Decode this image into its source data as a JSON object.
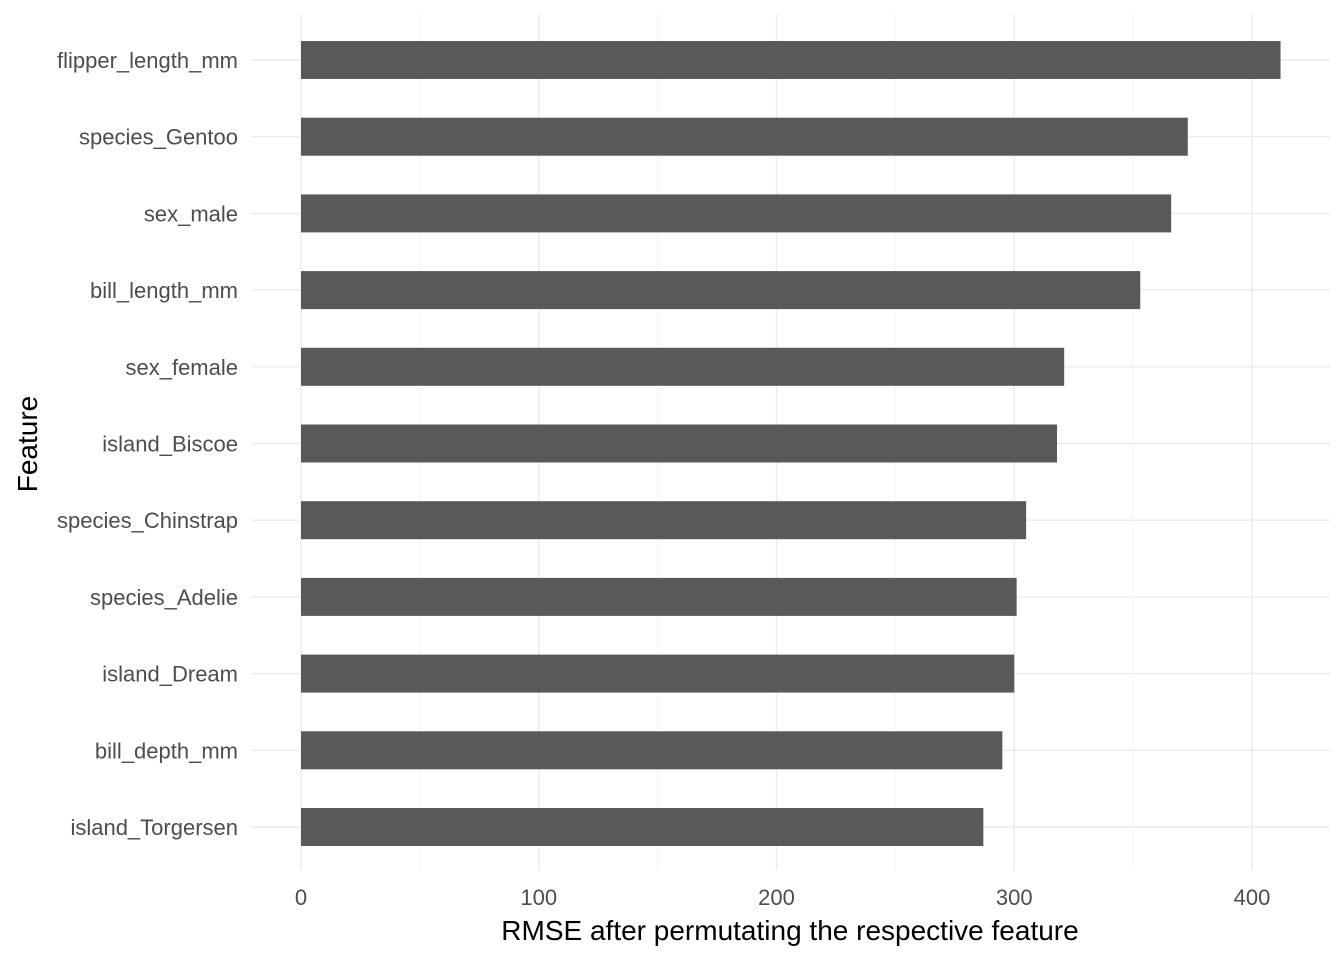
{
  "chart_data": {
    "type": "bar",
    "orientation": "horizontal",
    "categories": [
      "flipper_length_mm",
      "species_Gentoo",
      "sex_male",
      "bill_length_mm",
      "sex_female",
      "island_Biscoe",
      "species_Chinstrap",
      "species_Adelie",
      "island_Dream",
      "bill_depth_mm",
      "island_Torgersen"
    ],
    "values": [
      412,
      373,
      366,
      353,
      321,
      318,
      305,
      301,
      300,
      295,
      287
    ],
    "title": "",
    "xlabel": "RMSE after permutating the respective feature",
    "ylabel": "Feature",
    "xlim": [
      -20,
      425
    ],
    "x_ticks": [
      0,
      100,
      200,
      300,
      400
    ],
    "x_minor_ticks": [
      50,
      150,
      250,
      350
    ],
    "grid": true,
    "legend": "none",
    "bar_color": "#595959",
    "grid_color": "#ebebeb",
    "background": "#ffffff"
  }
}
